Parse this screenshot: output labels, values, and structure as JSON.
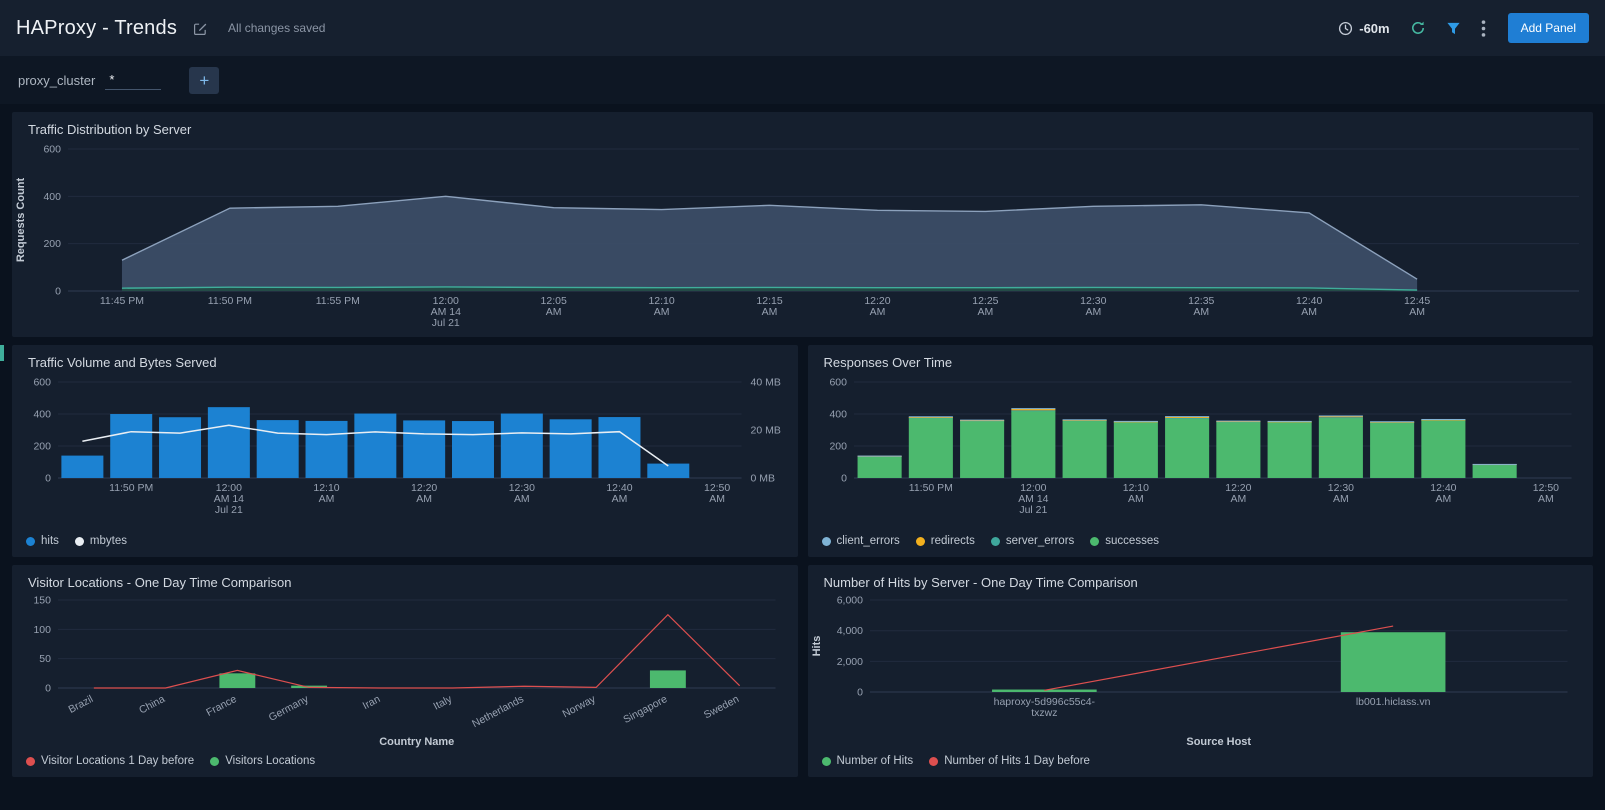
{
  "header": {
    "title": "HAProxy - Trends",
    "saved_status": "All changes saved",
    "time_range": "-60m",
    "add_panel": "Add Panel"
  },
  "filter_bar": {
    "label": "proxy_cluster",
    "value": "*",
    "add_button": "+"
  },
  "panels": {
    "traffic_volume": {
      "legend": [
        {
          "label": "hits",
          "color": "#1c82d2"
        },
        {
          "label": "mbytes",
          "color": "#e9eef3"
        }
      ]
    },
    "responses": {
      "legend": [
        {
          "label": "client_errors",
          "color": "#7fb3d5"
        },
        {
          "label": "redirects",
          "color": "#f2b01e"
        },
        {
          "label": "server_errors",
          "color": "#3fa79c"
        },
        {
          "label": "successes",
          "color": "#4cb96e"
        }
      ]
    },
    "visitor_locations": {
      "legend": [
        {
          "label": "Visitor Locations 1 Day before",
          "color": "#dd4f4f"
        },
        {
          "label": "Visitors Locations",
          "color": "#4cb96e"
        }
      ]
    },
    "hits_by_server": {
      "legend": [
        {
          "label": "Number of Hits",
          "color": "#4cb96e"
        },
        {
          "label": "Number of Hits 1 Day before",
          "color": "#dd4f4f"
        }
      ]
    }
  },
  "chart_data": [
    {
      "id": "traffic-distribution",
      "type": "area",
      "title": "Traffic Distribution by Server",
      "ylabel": "Requests Count",
      "ylim": [
        0,
        600
      ],
      "yticks": [
        {
          "v": 0,
          "label": "0"
        },
        {
          "v": 200,
          "label": "200"
        },
        {
          "v": 400,
          "label": "400"
        },
        {
          "v": 600,
          "label": "600"
        }
      ],
      "x_ticks": [
        [
          "11:45 PM"
        ],
        [
          "11:50 PM"
        ],
        [
          "11:55 PM"
        ],
        [
          "12:00",
          "AM 14",
          "Jul 21"
        ],
        [
          "12:05",
          "AM"
        ],
        [
          "12:10",
          "AM"
        ],
        [
          "12:15",
          "AM"
        ],
        [
          "12:20",
          "AM"
        ],
        [
          "12:25",
          "AM"
        ],
        [
          "12:30",
          "AM"
        ],
        [
          "12:35",
          "AM"
        ],
        [
          "12:40",
          "AM"
        ],
        [
          "12:45",
          "AM"
        ]
      ],
      "series": [
        {
          "name": "series_1",
          "type": "area",
          "fill": "#3d4e68",
          "stroke": "#8ca1bc",
          "values": [
            130,
            350,
            358,
            400,
            352,
            344,
            362,
            341,
            336,
            358,
            364,
            330,
            50
          ]
        },
        {
          "name": "series_2",
          "type": "area",
          "fill": "#234b44",
          "stroke": "#3fae9b",
          "values": [
            12,
            16,
            15,
            17,
            15,
            14,
            15,
            14,
            14,
            15,
            14,
            13,
            4
          ]
        }
      ]
    },
    {
      "id": "traffic-volume",
      "type": "bar",
      "title": "Traffic Volume and Bytes Served",
      "ylim": [
        0,
        600
      ],
      "yticks": [
        {
          "v": 0,
          "label": "0"
        },
        {
          "v": 200,
          "label": "200"
        },
        {
          "v": 400,
          "label": "400"
        },
        {
          "v": 600,
          "label": "600"
        }
      ],
      "y2lim": [
        0,
        40
      ],
      "y2ticks": [
        {
          "v": 0,
          "label": "0 MB"
        },
        {
          "v": 20,
          "label": "20 MB"
        },
        {
          "v": 40,
          "label": "40 MB"
        }
      ],
      "x_ticks": [
        null,
        [
          "11:50 PM"
        ],
        null,
        [
          "12:00",
          "AM 14",
          "Jul 21"
        ],
        null,
        [
          "12:10",
          "AM"
        ],
        null,
        [
          "12:20",
          "AM"
        ],
        null,
        [
          "12:30",
          "AM"
        ],
        null,
        [
          "12:40",
          "AM"
        ],
        null,
        [
          "12:50",
          "AM"
        ]
      ],
      "bar_series": [
        {
          "name": "hits",
          "color": "#1c82d2",
          "values": [
            140,
            400,
            380,
            443,
            362,
            357,
            403,
            360,
            356,
            403,
            367,
            381,
            90
          ]
        }
      ],
      "lines": [
        {
          "name": "mbytes",
          "color": "#e9eef3",
          "axis": "right",
          "width": 1.5,
          "values": [
            15.3,
            19.3,
            18.7,
            22.0,
            18.7,
            18.1,
            19.2,
            18.4,
            18.1,
            18.8,
            18.4,
            19.3,
            5.0
          ]
        }
      ]
    },
    {
      "id": "responses",
      "type": "bar",
      "title": "Responses Over Time",
      "ylim": [
        0,
        600
      ],
      "yticks": [
        {
          "v": 0,
          "label": "0"
        },
        {
          "v": 200,
          "label": "200"
        },
        {
          "v": 400,
          "label": "400"
        },
        {
          "v": 600,
          "label": "600"
        }
      ],
      "x_ticks": [
        null,
        [
          "11:50 PM"
        ],
        null,
        [
          "12:00",
          "AM 14",
          "Jul 21"
        ],
        null,
        [
          "12:10",
          "AM"
        ],
        null,
        [
          "12:20",
          "AM"
        ],
        null,
        [
          "12:30",
          "AM"
        ],
        null,
        [
          "12:40",
          "AM"
        ],
        null,
        [
          "12:50",
          "AM"
        ]
      ],
      "bar_series": [
        {
          "name": "successes",
          "color": "#4cb96e",
          "values": [
            137,
            377,
            358,
            420,
            360,
            350,
            373,
            352,
            350,
            378,
            348,
            362,
            85
          ]
        },
        {
          "name": "server_errors",
          "color": "#3fa79c",
          "values": [
            1,
            2,
            2,
            3,
            2,
            2,
            2,
            2,
            2,
            2,
            2,
            2,
            1
          ]
        },
        {
          "name": "redirects",
          "color": "#f2b01e",
          "values": [
            1,
            3,
            2,
            9,
            2,
            2,
            8,
            2,
            2,
            7,
            2,
            2,
            1
          ]
        },
        {
          "name": "client_errors",
          "color": "#7fb3d5",
          "values": [
            1,
            4,
            3,
            5,
            3,
            3,
            4,
            3,
            3,
            4,
            3,
            3,
            1
          ]
        }
      ]
    },
    {
      "id": "visitor-locations",
      "type": "bar",
      "title": "Visitor Locations - One Day Time Comparison",
      "xlabel": "Country Name",
      "ylim": [
        0,
        150
      ],
      "yticks": [
        {
          "v": 0,
          "label": "0"
        },
        {
          "v": 50,
          "label": "50"
        },
        {
          "v": 100,
          "label": "100"
        },
        {
          "v": 150,
          "label": "150"
        }
      ],
      "x_ticks": [
        [
          "Brazil"
        ],
        [
          "China"
        ],
        [
          "France"
        ],
        [
          "Germany"
        ],
        [
          "Iran"
        ],
        [
          "Italy"
        ],
        [
          "Netherlands"
        ],
        [
          "Norway"
        ],
        [
          "Singapore"
        ],
        [
          "Sweden"
        ]
      ],
      "bar_series": [
        {
          "name": "Visitors Locations",
          "color": "#4cb96e",
          "values": [
            0,
            0,
            25,
            4,
            0,
            0,
            0,
            0,
            30,
            0
          ]
        }
      ],
      "lines": [
        {
          "name": "Visitor Locations 1 Day before",
          "color": "#dd4f4f",
          "width": 1.2,
          "values": [
            0,
            0,
            30,
            1,
            0,
            0,
            3,
            1,
            125,
            4
          ]
        }
      ]
    },
    {
      "id": "hits-by-server",
      "type": "bar",
      "title": "Number of Hits by Server - One Day Time Comparison",
      "xlabel": "Source Host",
      "ylabel": "Hits",
      "ylim": [
        0,
        6000
      ],
      "yticks": [
        {
          "v": 0,
          "label": "0"
        },
        {
          "v": 2000,
          "label": "2,000"
        },
        {
          "v": 4000,
          "label": "4,000"
        },
        {
          "v": 6000,
          "label": "6,000"
        }
      ],
      "x_ticks": [
        [
          "haproxy-5d996c55c4-",
          "txzwz"
        ],
        [
          "lb001.hiclass.vn"
        ]
      ],
      "bar_series": [
        {
          "name": "Number of Hits",
          "color": "#4cb96e",
          "values": [
            160,
            3900
          ]
        }
      ],
      "lines": [
        {
          "name": "Number of Hits 1 Day before",
          "color": "#dd4f4f",
          "width": 1.2,
          "values": [
            110,
            4300
          ]
        }
      ]
    }
  ]
}
